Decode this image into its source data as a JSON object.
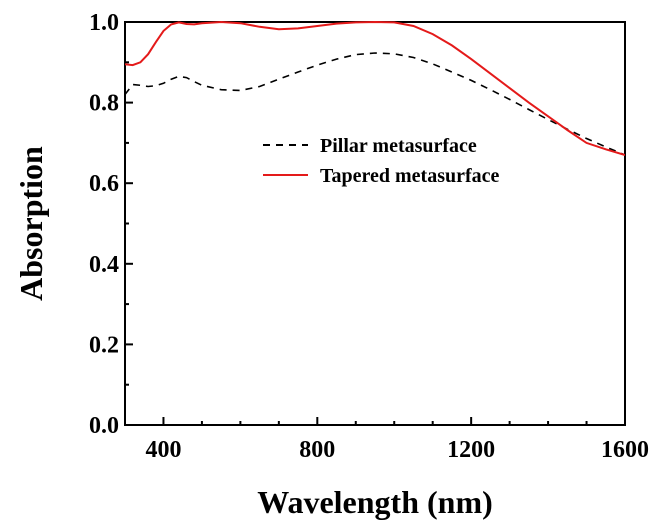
{
  "chart_data": {
    "type": "line",
    "xlabel": "Wavelength (nm)",
    "ylabel": "Absorption",
    "xlim": [
      300,
      1600
    ],
    "ylim": [
      0.0,
      1.0
    ],
    "x_ticks": [
      400,
      800,
      1200,
      1600
    ],
    "x_tick_labels": [
      "400",
      "800",
      "1200",
      "1600"
    ],
    "y_ticks": [
      0.0,
      0.2,
      0.4,
      0.6,
      0.8,
      1.0
    ],
    "y_tick_labels": [
      "0.0",
      "0.2",
      "0.4",
      "0.6",
      "0.8",
      "1.0"
    ],
    "grid": false,
    "legend_position": "center-right",
    "series": [
      {
        "name": "Pillar metasurface",
        "color": "#000000",
        "dash": "dashed",
        "x": [
          300,
          320,
          340,
          360,
          380,
          400,
          420,
          440,
          460,
          480,
          500,
          550,
          600,
          650,
          700,
          750,
          800,
          850,
          900,
          950,
          1000,
          1050,
          1100,
          1150,
          1200,
          1250,
          1300,
          1350,
          1400,
          1450,
          1500,
          1550,
          1600
        ],
        "y": [
          0.82,
          0.845,
          0.843,
          0.84,
          0.842,
          0.848,
          0.858,
          0.865,
          0.862,
          0.852,
          0.843,
          0.832,
          0.83,
          0.84,
          0.858,
          0.876,
          0.893,
          0.908,
          0.919,
          0.923,
          0.921,
          0.912,
          0.896,
          0.876,
          0.855,
          0.832,
          0.808,
          0.783,
          0.758,
          0.734,
          0.711,
          0.69,
          0.67
        ]
      },
      {
        "name": "Tapered metasurface",
        "color": "#e41a1a",
        "dash": "solid",
        "x": [
          300,
          320,
          340,
          360,
          380,
          400,
          420,
          440,
          460,
          480,
          500,
          550,
          600,
          650,
          700,
          750,
          800,
          850,
          900,
          950,
          1000,
          1050,
          1100,
          1150,
          1200,
          1250,
          1300,
          1350,
          1400,
          1450,
          1500,
          1550,
          1600
        ],
        "y": [
          0.895,
          0.893,
          0.9,
          0.92,
          0.95,
          0.978,
          0.994,
          0.999,
          0.995,
          0.994,
          0.997,
          1.0,
          0.997,
          0.988,
          0.982,
          0.984,
          0.99,
          0.996,
          0.999,
          1.0,
          0.999,
          0.99,
          0.97,
          0.942,
          0.908,
          0.872,
          0.836,
          0.8,
          0.766,
          0.732,
          0.7,
          0.684,
          0.67
        ]
      }
    ]
  }
}
